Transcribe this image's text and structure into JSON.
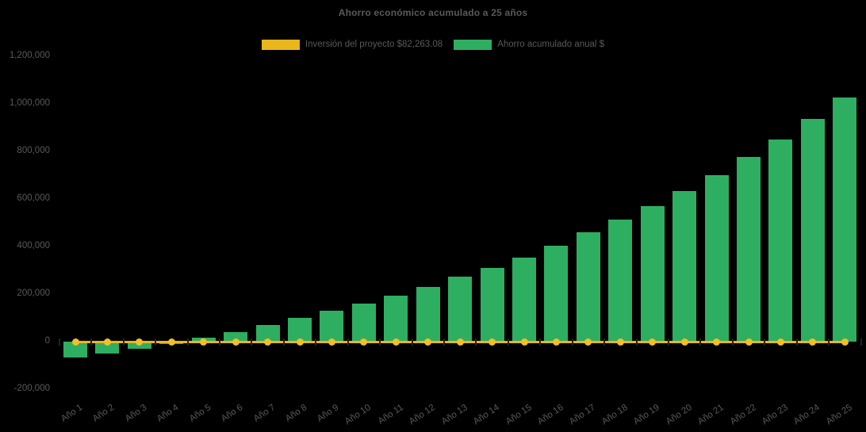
{
  "chart_data": {
    "type": "bar",
    "title": "Ahorro económico acumulado a 25 años",
    "categories": [
      "Año 1",
      "Año 2",
      "Año 3",
      "Año 4",
      "Año 5",
      "Año 6",
      "Año 7",
      "Año 8",
      "Año 9",
      "Año 10",
      "Año 11",
      "Año 12",
      "Año 13",
      "Año 14",
      "Año 15",
      "Año 16",
      "Año 17",
      "Año 18",
      "Año 19",
      "Año 20",
      "Año 21",
      "Año 22",
      "Año 23",
      "Año 24",
      "Año 25"
    ],
    "series": [
      {
        "name": "Inversión del proyecto $82,263.08",
        "type": "line",
        "color": "#E9B71C",
        "marker_color": "#F0C02A",
        "values": [
          0,
          0,
          0,
          0,
          0,
          0,
          0,
          0,
          0,
          0,
          0,
          0,
          0,
          0,
          0,
          0,
          0,
          0,
          0,
          0,
          0,
          0,
          0,
          0,
          0
        ]
      },
      {
        "name": "Ahorro acumulado anual $",
        "type": "bar",
        "color": "#2EAE61",
        "values": [
          -67000,
          -50000,
          -31000,
          -11000,
          18000,
          40000,
          69000,
          99000,
          129000,
          159000,
          193000,
          230000,
          273000,
          309000,
          354000,
          402000,
          459000,
          512000,
          570000,
          632000,
          701000,
          777000,
          851000,
          937000,
          1027000
        ]
      }
    ],
    "y_axis": {
      "tick_labels": [
        "1,200,000",
        "1,000,000",
        "800,000",
        "600,000",
        "400,000",
        "200,000",
        "0",
        "-200,000"
      ],
      "min": -200000,
      "max": 1200000,
      "step": 200000
    },
    "legend_position": "top",
    "grid": false,
    "text_color": "#595959",
    "background_color": "#000000"
  }
}
